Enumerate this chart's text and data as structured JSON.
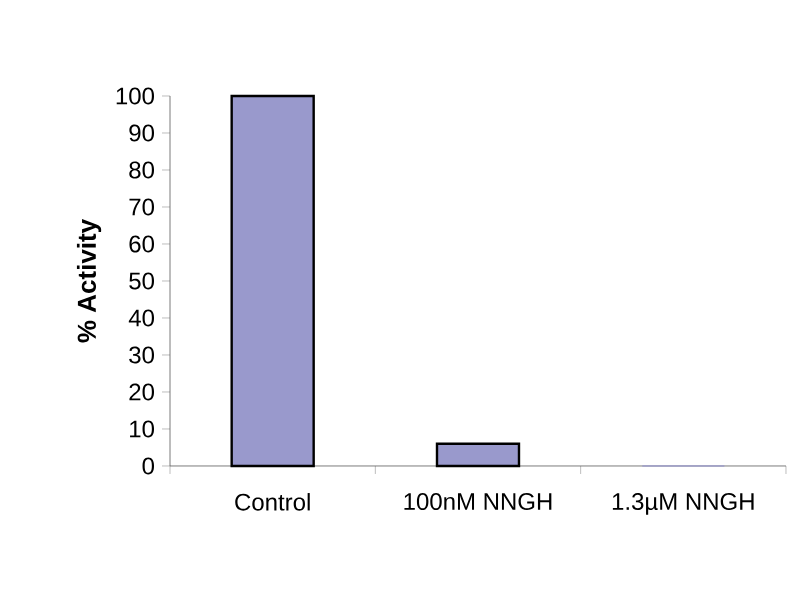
{
  "chart_data": {
    "type": "bar",
    "ylabel": "% Activity",
    "categories": [
      "Control",
      "100nM NNGH",
      "1.3µM NNGH"
    ],
    "values": [
      100,
      6,
      0
    ],
    "color": "#9999cc",
    "ylim": [
      0,
      100
    ],
    "yticks": [
      0,
      10,
      20,
      30,
      40,
      50,
      60,
      70,
      80,
      90,
      100
    ]
  }
}
